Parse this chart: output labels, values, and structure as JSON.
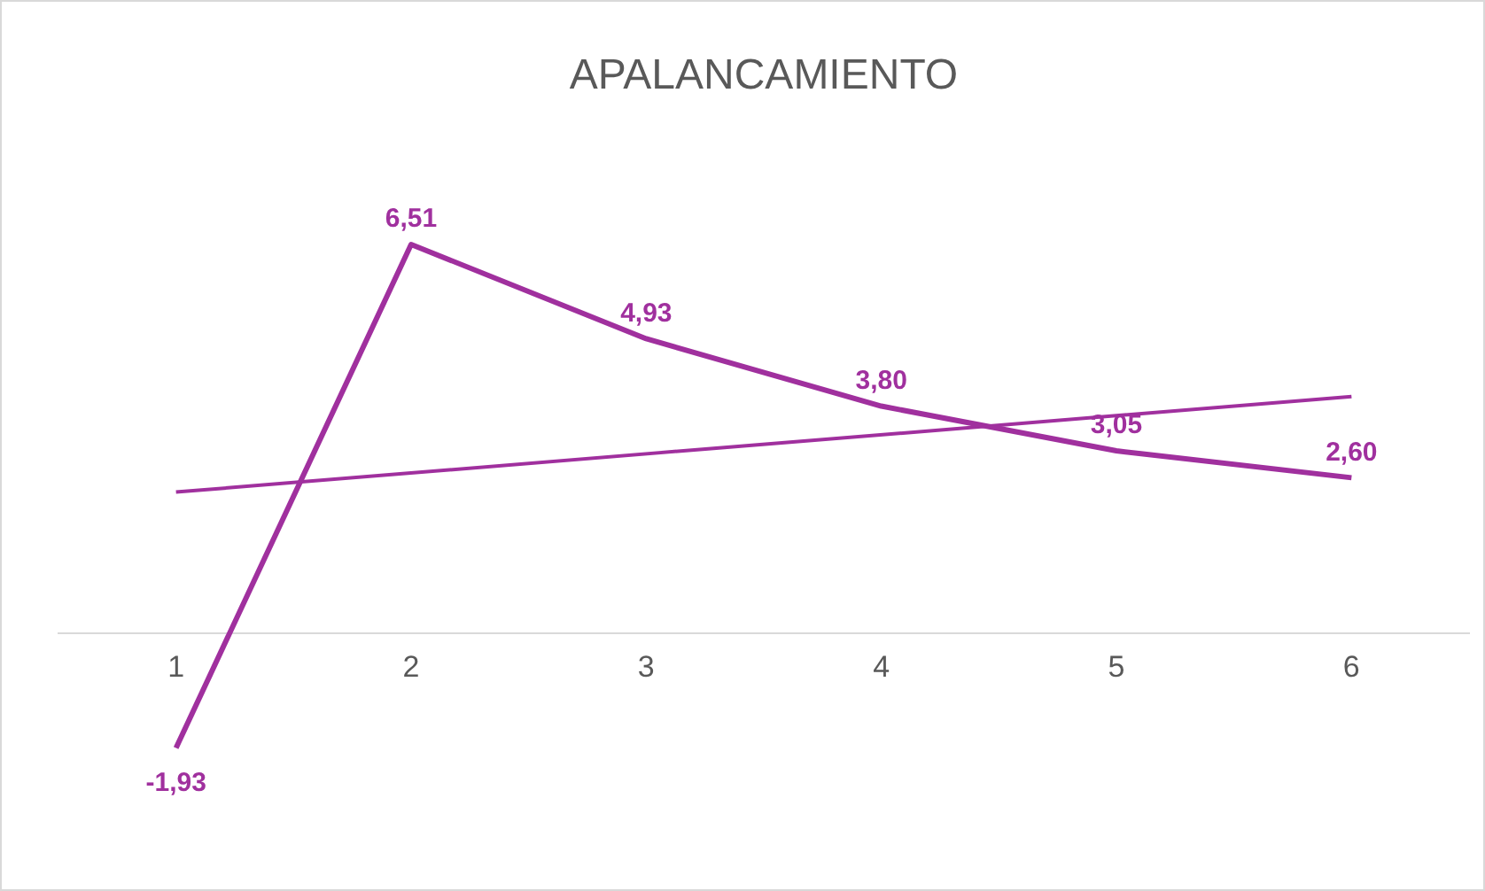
{
  "chart_data": {
    "type": "line",
    "title": "APALANCAMIENTO",
    "x": [
      1,
      2,
      3,
      4,
      5,
      6
    ],
    "xlim": [
      0.5,
      6.5
    ],
    "xticks": [
      1,
      2,
      3,
      4,
      5,
      6
    ],
    "tick_labels": "x",
    "grid": false,
    "legend": false,
    "marker": "none",
    "series": [
      {
        "color": "#a0309e",
        "values": [
          -1.93,
          6.51,
          4.93,
          3.8,
          3.05,
          2.6
        ],
        "value_labels": [
          "-1,93",
          "6,51",
          "4,93",
          "3,80",
          "3,05",
          "2,60"
        ]
      },
      {
        "type": "line",
        "color": "#a0309e",
        "x": [
          1,
          6
        ],
        "values": [
          2.36,
          3.96
        ]
      }
    ]
  }
}
